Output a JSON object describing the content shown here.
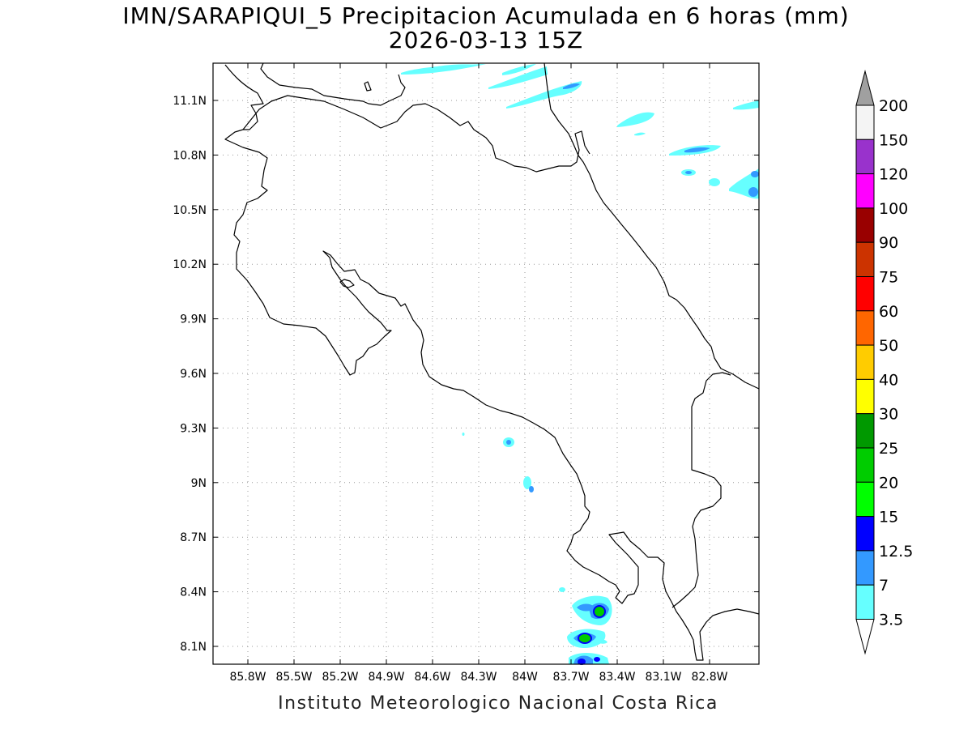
{
  "map": {
    "title_line1": "IMN/SARAPIQUI_5 Precipitacion Acumulada en 6 horas (mm)",
    "title_line2": "2026-03-13 15Z",
    "footer": "Instituto Meteorologico Nacional Costa Rica",
    "lat_labels": [
      "11.1N",
      "10.8N",
      "10.5N",
      "10.2N",
      "9.9N",
      "9.6N",
      "9.3N",
      "9N",
      "8.7N",
      "8.4N",
      "8.1N"
    ],
    "lon_labels": [
      "85.8W",
      "85.5W",
      "85.2W",
      "84.9W",
      "84.6W",
      "84.3W",
      "84W",
      "83.7W",
      "83.4W",
      "83.1W",
      "82.8W"
    ]
  },
  "legend": {
    "bins": [
      {
        "label": "200",
        "color": "#a0a0a0"
      },
      {
        "label": "150",
        "color": "#f4f4f4"
      },
      {
        "label": "120",
        "color": "#9932cc"
      },
      {
        "label": "100",
        "color": "#ff00ff"
      },
      {
        "label": "90",
        "color": "#990000"
      },
      {
        "label": "75",
        "color": "#cc3300"
      },
      {
        "label": "60",
        "color": "#ff0000"
      },
      {
        "label": "50",
        "color": "#ff6600"
      },
      {
        "label": "40",
        "color": "#ffcc00"
      },
      {
        "label": "30",
        "color": "#ffff00"
      },
      {
        "label": "25",
        "color": "#009900"
      },
      {
        "label": "20",
        "color": "#00cc00"
      },
      {
        "label": "15",
        "color": "#00ff00"
      },
      {
        "label": "12.5",
        "color": "#0000ff"
      },
      {
        "label": "7",
        "color": "#3399ff"
      },
      {
        "label": "3.5",
        "color": "#66ffff"
      }
    ],
    "bottom_color": "#ffffff"
  }
}
